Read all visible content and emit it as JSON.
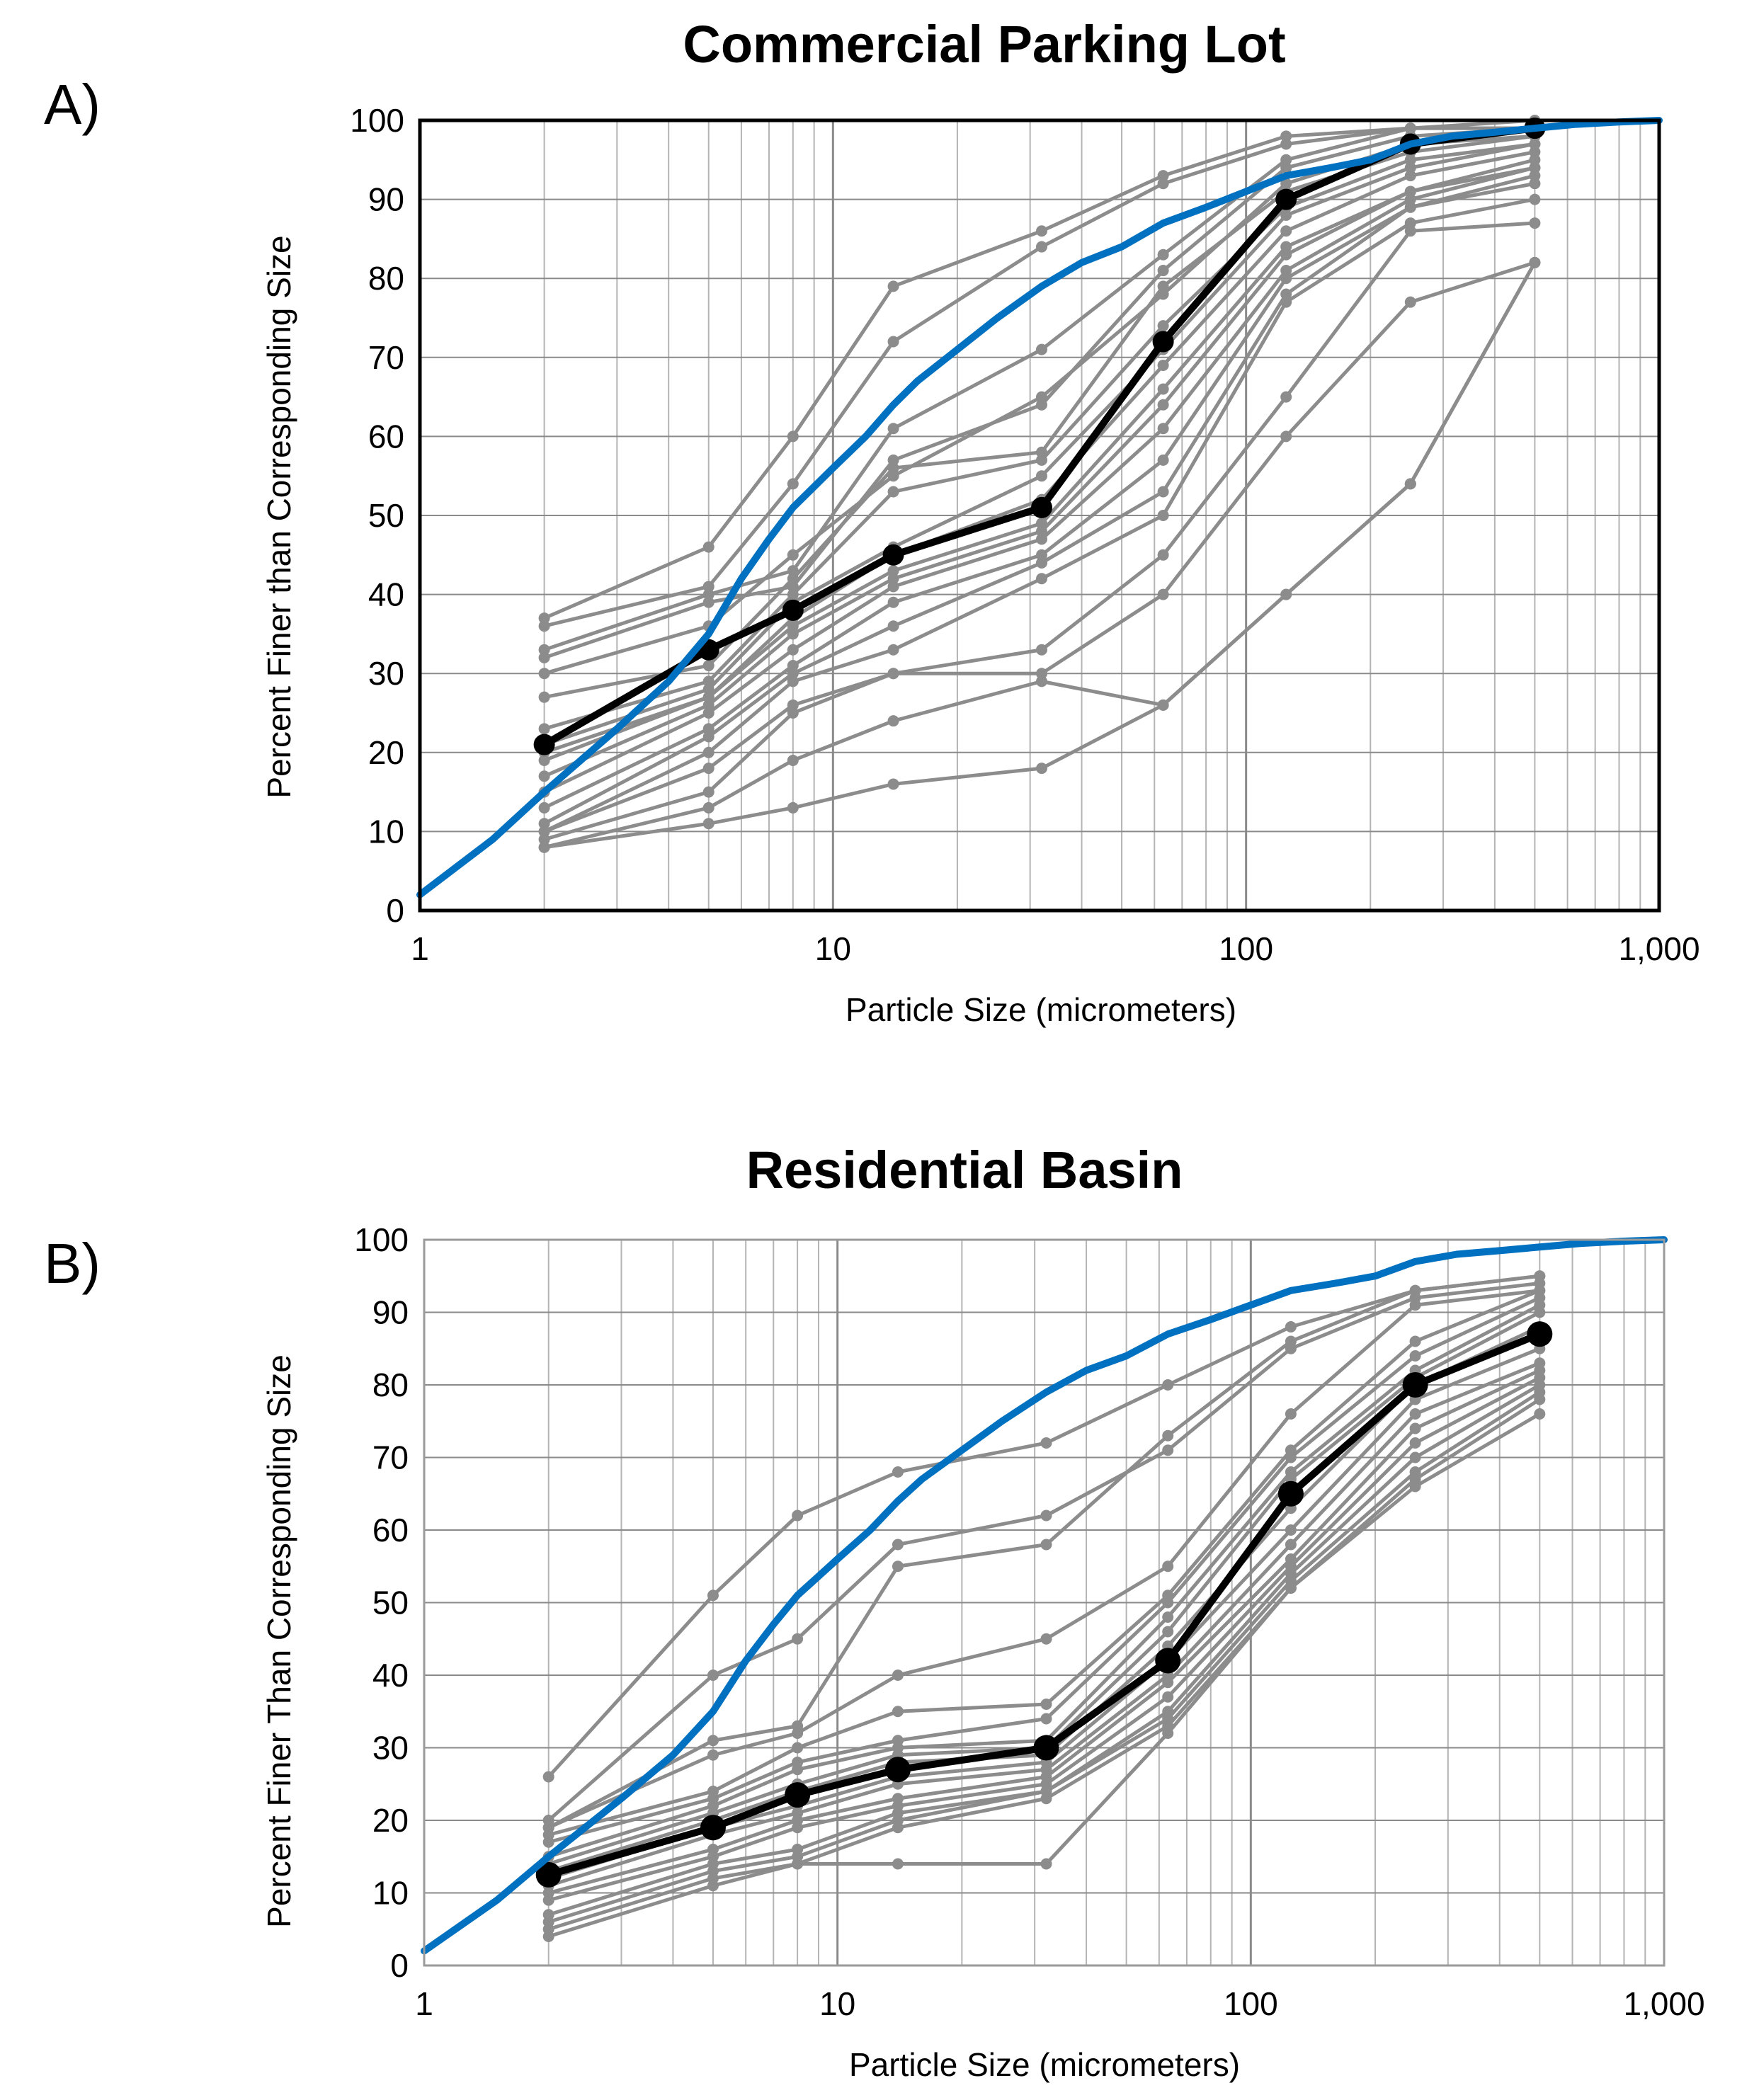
{
  "colors": {
    "sample": "#8c8c8c",
    "median": "#000000",
    "reference": "#0070c0",
    "grid": "#b4b4b4",
    "frame_a": "#000000",
    "frame_b": "#9a9a9a"
  },
  "chart_data": [
    {
      "type": "line",
      "panel_label": "A)",
      "title": "Commercial Parking Lot",
      "xlabel": "Particle Size (micrometers)",
      "ylabel": "Percent Finer than Corresponding Size",
      "x_scale": "log",
      "xlim": [
        1,
        1000
      ],
      "ylim": [
        0,
        100
      ],
      "x_ticks": [
        1,
        10,
        100,
        1000
      ],
      "x_tick_labels": [
        "1",
        "10",
        "100",
        "1,000"
      ],
      "y_ticks": [
        0,
        10,
        20,
        30,
        40,
        50,
        60,
        70,
        80,
        90,
        100
      ],
      "y_tick_labels": [
        "0",
        "10",
        "20",
        "30",
        "40",
        "50",
        "60",
        "70",
        "80",
        "90",
        "100"
      ],
      "x": [
        2,
        5,
        8,
        14,
        32,
        63,
        125,
        250,
        500
      ],
      "series": [
        {
          "name": "sample",
          "role": "sample",
          "values": [
            37,
            46,
            60,
            79,
            86,
            93,
            98,
            99,
            100
          ]
        },
        {
          "name": "sample",
          "role": "sample",
          "values": [
            36,
            41,
            54,
            72,
            84,
            92,
            97,
            99,
            99
          ]
        },
        {
          "name": "sample",
          "role": "sample",
          "values": [
            33,
            40,
            43,
            61,
            71,
            83,
            95,
            99,
            99
          ]
        },
        {
          "name": "sample",
          "role": "sample",
          "values": [
            32,
            39,
            41,
            57,
            64,
            81,
            94,
            98,
            99
          ]
        },
        {
          "name": "sample",
          "role": "sample",
          "values": [
            30,
            36,
            45,
            55,
            65,
            78,
            92,
            97,
            98
          ]
        },
        {
          "name": "sample",
          "role": "sample",
          "values": [
            27,
            31,
            42,
            56,
            58,
            79,
            91,
            96,
            98
          ]
        },
        {
          "name": "sample",
          "role": "sample",
          "values": [
            23,
            29,
            40,
            53,
            57,
            74,
            89,
            95,
            97
          ]
        },
        {
          "name": "sample",
          "role": "sample",
          "values": [
            21,
            28,
            39,
            46,
            55,
            71,
            88,
            94,
            97
          ]
        },
        {
          "name": "sample",
          "role": "sample",
          "values": [
            20,
            27,
            37,
            45,
            52,
            69,
            86,
            93,
            96
          ]
        },
        {
          "name": "sample",
          "role": "sample",
          "values": [
            19,
            27,
            36,
            43,
            49,
            66,
            84,
            91,
            95
          ]
        },
        {
          "name": "sample",
          "role": "sample",
          "values": [
            17,
            26,
            35,
            42,
            48,
            64,
            83,
            91,
            94
          ]
        },
        {
          "name": "sample",
          "role": "sample",
          "values": [
            15,
            25,
            33,
            41,
            47,
            61,
            81,
            90,
            94
          ]
        },
        {
          "name": "sample",
          "role": "sample",
          "values": [
            13,
            23,
            31,
            39,
            45,
            57,
            80,
            89,
            93
          ]
        },
        {
          "name": "sample",
          "role": "sample",
          "values": [
            11,
            22,
            30,
            36,
            44,
            53,
            78,
            89,
            92
          ]
        },
        {
          "name": "sample",
          "role": "sample",
          "values": [
            10,
            20,
            29,
            33,
            42,
            50,
            77,
            87,
            90
          ]
        },
        {
          "name": "sample",
          "role": "sample",
          "values": [
            10,
            18,
            26,
            30,
            33,
            45,
            65,
            86,
            87
          ]
        },
        {
          "name": "sample",
          "role": "sample",
          "values": [
            9,
            15,
            25,
            30,
            30,
            40,
            60,
            77,
            82
          ]
        },
        {
          "name": "sample",
          "role": "sample",
          "values": [
            8,
            13,
            19,
            24,
            29,
            26,
            40,
            54,
            82
          ]
        },
        {
          "name": "sample",
          "role": "sample",
          "values": [
            8,
            11,
            13,
            16,
            18,
            26,
            40,
            54,
            82
          ]
        },
        {
          "name": "median",
          "role": "median",
          "values": [
            21,
            33,
            38,
            45,
            51,
            72,
            90,
            97,
            99
          ]
        },
        {
          "name": "reference",
          "role": "reference",
          "x": [
            1,
            1.5,
            2,
            3,
            4,
            5,
            6,
            7,
            8,
            10,
            12,
            14,
            16,
            20,
            25,
            32,
            40,
            50,
            63,
            80,
            100,
            125,
            160,
            200,
            250,
            315,
            400,
            500,
            630,
            800,
            1000
          ],
          "values": [
            2,
            9,
            15,
            23,
            29,
            35,
            42,
            47,
            51,
            56,
            60,
            64,
            67,
            71,
            75,
            79,
            82,
            84,
            87,
            89,
            91,
            93,
            94,
            95,
            97,
            98,
            98.5,
            99,
            99.5,
            99.8,
            100
          ]
        }
      ]
    },
    {
      "type": "line",
      "panel_label": "B)",
      "title": "Residential Basin",
      "xlabel": "Particle Size (micrometers)",
      "ylabel": "Percent Finer Than Corresponding Size",
      "x_scale": "log",
      "xlim": [
        1,
        1000
      ],
      "ylim": [
        0,
        100
      ],
      "x_ticks": [
        1,
        10,
        100,
        1000
      ],
      "x_tick_labels": [
        "1",
        "10",
        "100",
        "1,000"
      ],
      "y_ticks": [
        0,
        10,
        20,
        30,
        40,
        50,
        60,
        70,
        80,
        90,
        100
      ],
      "y_tick_labels": [
        "0",
        "10",
        "20",
        "30",
        "40",
        "50",
        "60",
        "70",
        "80",
        "90",
        "100"
      ],
      "x": [
        2,
        5,
        8,
        14,
        32,
        63,
        125,
        250,
        500
      ],
      "series": [
        {
          "name": "sample",
          "role": "sample",
          "values": [
            26,
            51,
            62,
            68,
            72,
            80,
            88,
            93,
            95
          ]
        },
        {
          "name": "sample",
          "role": "sample",
          "values": [
            20,
            40,
            45,
            58,
            62,
            71,
            85,
            92,
            94
          ]
        },
        {
          "name": "sample",
          "role": "sample",
          "values": [
            19,
            31,
            33,
            55,
            58,
            73,
            86,
            93,
            95
          ]
        },
        {
          "name": "sample",
          "role": "sample",
          "values": [
            19,
            29,
            32,
            40,
            45,
            55,
            76,
            91,
            93
          ]
        },
        {
          "name": "sample",
          "role": "sample",
          "values": [
            18,
            24,
            30,
            35,
            36,
            51,
            71,
            86,
            93
          ]
        },
        {
          "name": "sample",
          "role": "sample",
          "values": [
            17,
            23,
            28,
            31,
            34,
            50,
            70,
            84,
            92
          ]
        },
        {
          "name": "sample",
          "role": "sample",
          "values": [
            15,
            22,
            27,
            30,
            31,
            48,
            68,
            82,
            91
          ]
        },
        {
          "name": "sample",
          "role": "sample",
          "values": [
            14,
            21,
            25,
            29,
            30,
            46,
            67,
            81,
            90
          ]
        },
        {
          "name": "sample",
          "role": "sample",
          "values": [
            13,
            20,
            24,
            28,
            29,
            44,
            63,
            80,
            88
          ]
        },
        {
          "name": "sample",
          "role": "sample",
          "values": [
            12,
            19,
            22,
            26,
            28,
            42,
            60,
            78,
            85
          ]
        },
        {
          "name": "sample",
          "role": "sample",
          "values": [
            11,
            18,
            21,
            25,
            27,
            40,
            58,
            76,
            83
          ]
        },
        {
          "name": "sample",
          "role": "sample",
          "values": [
            10,
            16,
            20,
            23,
            26,
            39,
            56,
            74,
            82
          ]
        },
        {
          "name": "sample",
          "role": "sample",
          "values": [
            9,
            15,
            19,
            22,
            25,
            37,
            55,
            72,
            81
          ]
        },
        {
          "name": "sample",
          "role": "sample",
          "values": [
            7,
            14,
            16,
            21,
            24,
            35,
            54,
            70,
            80
          ]
        },
        {
          "name": "sample",
          "role": "sample",
          "values": [
            6,
            13,
            15,
            20,
            24,
            34,
            53,
            68,
            79
          ]
        },
        {
          "name": "sample",
          "role": "sample",
          "values": [
            5,
            12,
            14,
            19,
            23,
            33,
            52,
            67,
            78
          ]
        },
        {
          "name": "sample",
          "role": "sample",
          "values": [
            4,
            11,
            14,
            14,
            14,
            32,
            52,
            66,
            76
          ]
        },
        {
          "name": "median",
          "role": "median",
          "values": [
            12.5,
            19,
            23.5,
            27,
            30,
            42,
            65,
            80,
            87
          ]
        },
        {
          "name": "reference",
          "role": "reference",
          "x": [
            1,
            1.5,
            2,
            3,
            4,
            5,
            6,
            7,
            8,
            10,
            12,
            14,
            16,
            20,
            25,
            32,
            40,
            50,
            63,
            80,
            100,
            125,
            160,
            200,
            250,
            315,
            400,
            500,
            630,
            800,
            1000
          ],
          "values": [
            2,
            9,
            15,
            23,
            29,
            35,
            42,
            47,
            51,
            56,
            60,
            64,
            67,
            71,
            75,
            79,
            82,
            84,
            87,
            89,
            91,
            93,
            94,
            95,
            97,
            98,
            98.5,
            99,
            99.5,
            99.8,
            100
          ]
        }
      ]
    }
  ]
}
